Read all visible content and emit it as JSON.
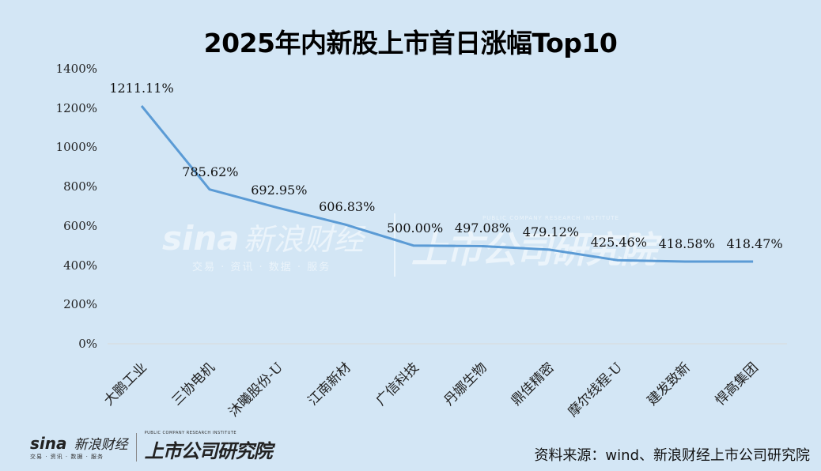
{
  "title": "2025年内新股上市首日涨幅Top10",
  "chart_data": {
    "type": "line",
    "title": "2025年内新股上市首日涨幅Top10",
    "xlabel": "",
    "ylabel": "",
    "ylim": [
      0,
      1400
    ],
    "yticks": [
      "0%",
      "200%",
      "400%",
      "600%",
      "800%",
      "1000%",
      "1200%",
      "1400%"
    ],
    "grid": false,
    "legend": "none",
    "categories": [
      "大鹏工业",
      "三协电机",
      "沐曦股份-U",
      "江南新材",
      "广信科技",
      "丹娜生物",
      "鼎佳精密",
      "摩尔线程-U",
      "建发致新",
      "悍高集团"
    ],
    "values": [
      1211.11,
      785.62,
      692.95,
      606.83,
      500.0,
      497.08,
      479.12,
      425.46,
      418.58,
      418.47
    ],
    "data_labels": [
      "1211.11%",
      "785.62%",
      "692.95%",
      "606.83%",
      "500.00%",
      "497.08%",
      "479.12%",
      "425.46%",
      "418.58%",
      "418.47%"
    ],
    "line_color": "#5b9bd5"
  },
  "watermark": {
    "sina": "sina",
    "sina_cn": "新浪财经",
    "sina_sub": "交易 · 资讯 · 数据 · 服务",
    "institute": "上市公司研究院",
    "institute_en": "PUBLIC COMPANY RESEARCH INSTITUTE"
  },
  "footer": {
    "logo_sina": "sina",
    "logo_sina_cn": "新浪财经",
    "logo_sub": "交易 · 资讯 · 数据 · 服务",
    "logo_institute": "上市公司研究院",
    "logo_institute_en": "PUBLIC COMPANY RESEARCH INSTITUTE",
    "source": "资料来源：wind、新浪财经上市公司研究院"
  }
}
